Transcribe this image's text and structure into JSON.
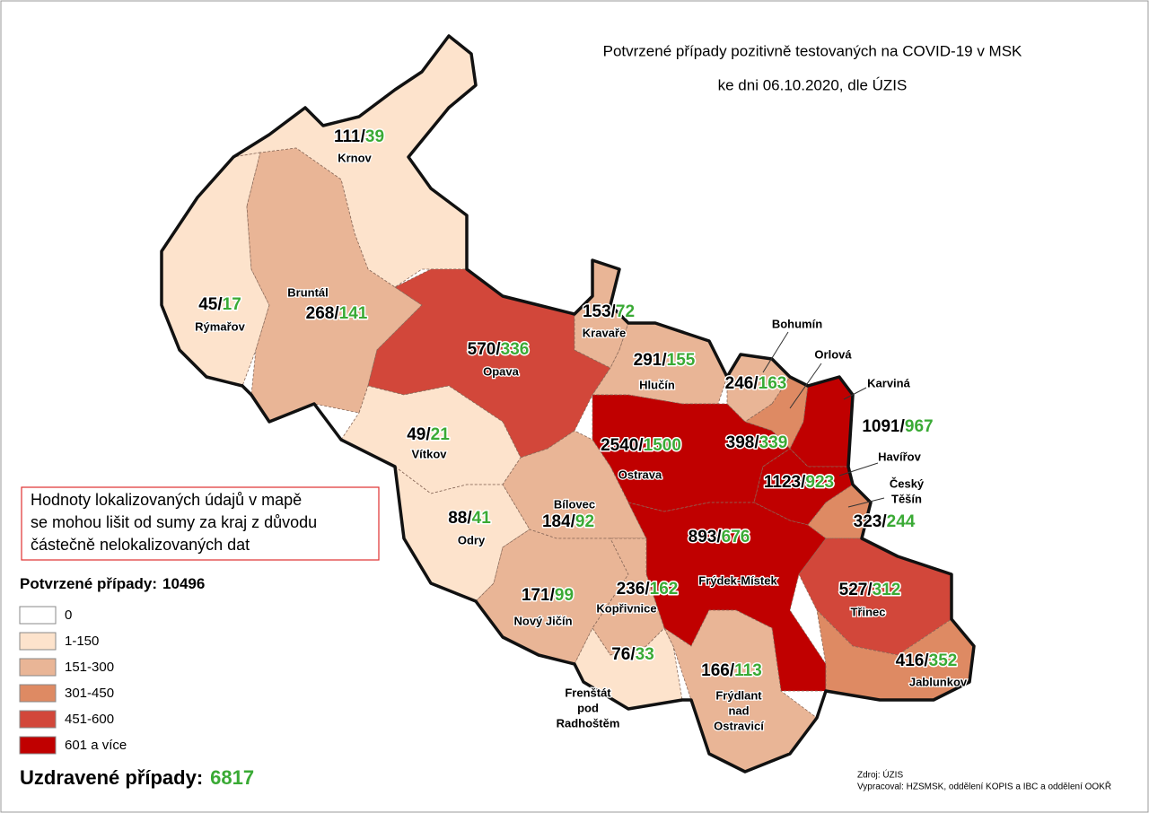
{
  "title": "Potvrzené případy pozitivně testovaných na COVID-19 v MSK",
  "subtitle": "ke dni 06.10.2020, dle ÚZIS",
  "note": [
    "Hodnoty lokalizovaných údajů v mapě",
    "se mohou lišit od sumy za kraj z důvodu",
    "částečně nelokalizovaných dat"
  ],
  "separator": "/",
  "confirmed_color": "#000000",
  "recovered_color": "#3aaa35",
  "legend": {
    "title": "Potvrzené případy:",
    "total": 10496,
    "classes": [
      {
        "label": "0",
        "color": "#ffffff"
      },
      {
        "label": "1-150",
        "color": "#fde3cc"
      },
      {
        "label": "151-300",
        "color": "#e9b596"
      },
      {
        "label": "301-450",
        "color": "#de8a63"
      },
      {
        "label": "451-600",
        "color": "#d2473a"
      },
      {
        "label": "601 a více",
        "color": "#c00000"
      }
    ]
  },
  "recovered": {
    "label": "Uzdravené případy:",
    "total": 6817
  },
  "districts": [
    {
      "name": [
        "Krnov"
      ],
      "confirmed": 111,
      "recovered": 39,
      "color": "#fde3cc"
    },
    {
      "name": [
        "Rýmařov"
      ],
      "confirmed": 45,
      "recovered": 17,
      "color": "#fde3cc"
    },
    {
      "name": [
        "Bruntál"
      ],
      "confirmed": 268,
      "recovered": 141,
      "color": "#e9b596"
    },
    {
      "name": [
        "Opava"
      ],
      "confirmed": 570,
      "recovered": 336,
      "color": "#d2473a"
    },
    {
      "name": [
        "Kravaře"
      ],
      "confirmed": 153,
      "recovered": 72,
      "color": "#e9b596"
    },
    {
      "name": [
        "Hlučín"
      ],
      "confirmed": 291,
      "recovered": 155,
      "color": "#e9b596"
    },
    {
      "name": [
        "Bohumín"
      ],
      "confirmed": 246,
      "recovered": 163,
      "color": "#e9b596"
    },
    {
      "name": [
        "Orlová"
      ],
      "confirmed": 398,
      "recovered": 339,
      "color": "#de8a63"
    },
    {
      "name": [
        "Karviná"
      ],
      "confirmed": 1091,
      "recovered": 967,
      "color": "#c00000"
    },
    {
      "name": [
        "Vítkov"
      ],
      "confirmed": 49,
      "recovered": 21,
      "color": "#fde3cc"
    },
    {
      "name": [
        "Ostrava"
      ],
      "confirmed": 2540,
      "recovered": 1500,
      "color": "#c00000"
    },
    {
      "name": [
        "Havířov"
      ],
      "confirmed": 1123,
      "recovered": 923,
      "color": "#c00000"
    },
    {
      "name": [
        "Český",
        "Těšín"
      ],
      "confirmed": 323,
      "recovered": 244,
      "color": "#de8a63"
    },
    {
      "name": [
        "Bílovec"
      ],
      "confirmed": 184,
      "recovered": 92,
      "color": "#e9b596"
    },
    {
      "name": [
        "Odry"
      ],
      "confirmed": 88,
      "recovered": 41,
      "color": "#fde3cc"
    },
    {
      "name": [
        "Frýdek-Místek"
      ],
      "confirmed": 893,
      "recovered": 676,
      "color": "#c00000"
    },
    {
      "name": [
        "Třinec"
      ],
      "confirmed": 527,
      "recovered": 312,
      "color": "#d2473a"
    },
    {
      "name": [
        "Nový Jičín"
      ],
      "confirmed": 171,
      "recovered": 99,
      "color": "#e9b596"
    },
    {
      "name": [
        "Kopřivnice"
      ],
      "confirmed": 236,
      "recovered": 162,
      "color": "#e9b596"
    },
    {
      "name": [
        "Frenštát",
        "pod",
        "Radhoštěm"
      ],
      "confirmed": 76,
      "recovered": 33,
      "color": "#fde3cc"
    },
    {
      "name": [
        "Frýdlant",
        "nad",
        "Ostravicí"
      ],
      "confirmed": 166,
      "recovered": 113,
      "color": "#e9b596"
    },
    {
      "name": [
        "Jablunkov"
      ],
      "confirmed": 416,
      "recovered": 352,
      "color": "#de8a63"
    }
  ],
  "source": "Zdroj: ÚZIS",
  "author": "Vypracoval: HZSMSK, oddělení KOPIS a IBC a oddělení OOKŘ"
}
